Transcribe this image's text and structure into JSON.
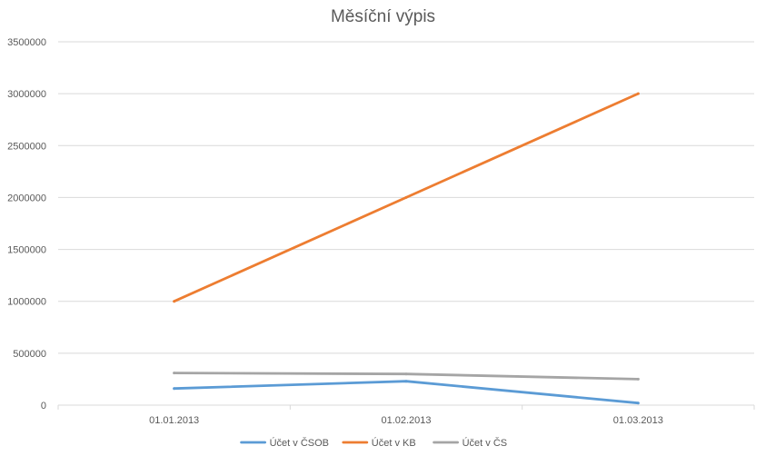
{
  "chart_data": {
    "type": "line",
    "title": "Měsíční výpis",
    "xlabel": "",
    "ylabel": "",
    "categories": [
      "01.01.2013",
      "01.02.2013",
      "01.03.2013"
    ],
    "ylim": [
      0,
      3500000
    ],
    "yticks": [
      0,
      500000,
      1000000,
      1500000,
      2000000,
      2500000,
      3000000,
      3500000
    ],
    "grid": true,
    "legend_position": "bottom",
    "series": [
      {
        "name": "Účet v ČSOB",
        "color": "#5b9bd5",
        "values": [
          160000,
          230000,
          20000
        ]
      },
      {
        "name": "Účet v KB",
        "color": "#ed7d31",
        "values": [
          1000000,
          2000000,
          3000000
        ]
      },
      {
        "name": "Účet v ČS",
        "color": "#a5a5a5",
        "values": [
          310000,
          300000,
          250000
        ]
      }
    ]
  }
}
